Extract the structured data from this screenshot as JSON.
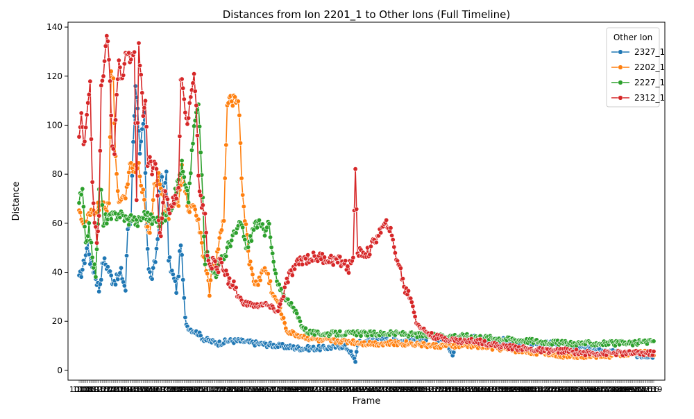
{
  "chart_data": {
    "type": "line",
    "title": "Distances from Ion 2201_1 to Other Ions (Full Timeline)",
    "xlabel": "Frame",
    "ylabel": "Distance",
    "ylim": [
      -4,
      142
    ],
    "y_ticks": [
      0,
      20,
      40,
      60,
      80,
      100,
      120,
      140
    ],
    "x_tick_labels_note": "",
    "grid": false,
    "legend": {
      "title": "Other Ion",
      "placement": "top-right"
    },
    "series": [
      {
        "name": "2327_1",
        "color": "#1f77b4",
        "anchors": [
          [
            0,
            37
          ],
          [
            4,
            43
          ],
          [
            8,
            52
          ],
          [
            10,
            45
          ],
          [
            14,
            40
          ],
          [
            18,
            33
          ],
          [
            22,
            45
          ],
          [
            26,
            42
          ],
          [
            30,
            37
          ],
          [
            34,
            37
          ],
          [
            38,
            40
          ],
          [
            42,
            33
          ],
          [
            44,
            58
          ],
          [
            47,
            62
          ],
          [
            49,
            95
          ],
          [
            51,
            115
          ],
          [
            53,
            105
          ],
          [
            55,
            87
          ],
          [
            57,
            98
          ],
          [
            59,
            103
          ],
          [
            61,
            60
          ],
          [
            63,
            42
          ],
          [
            65,
            37
          ],
          [
            67,
            40
          ],
          [
            69,
            45
          ],
          [
            71,
            54
          ],
          [
            74,
            80
          ],
          [
            76,
            75
          ],
          [
            79,
            80
          ],
          [
            81,
            46
          ],
          [
            84,
            40
          ],
          [
            86,
            37
          ],
          [
            88,
            33
          ],
          [
            90,
            40
          ],
          [
            92,
            53
          ],
          [
            94,
            37
          ],
          [
            96,
            21
          ],
          [
            98,
            18
          ],
          [
            100,
            17
          ],
          [
            104,
            16
          ],
          [
            108,
            15
          ],
          [
            112,
            13
          ],
          [
            118,
            12
          ],
          [
            126,
            11
          ],
          [
            135,
            12
          ],
          [
            145,
            12
          ],
          [
            160,
            11
          ],
          [
            180,
            10
          ],
          [
            200,
            9
          ],
          [
            220,
            9
          ],
          [
            240,
            10
          ],
          [
            245,
            8
          ],
          [
            248,
            5
          ],
          [
            250,
            4
          ],
          [
            252,
            11
          ],
          [
            270,
            13
          ],
          [
            290,
            12
          ],
          [
            310,
            13
          ],
          [
            330,
            13
          ],
          [
            338,
            7
          ],
          [
            345,
            14
          ],
          [
            370,
            13
          ],
          [
            390,
            12
          ],
          [
            410,
            11
          ],
          [
            430,
            11
          ],
          [
            450,
            10
          ],
          [
            470,
            8
          ],
          [
            490,
            7
          ],
          [
            510,
            6
          ],
          [
            520,
            6
          ]
        ]
      },
      {
        "name": "2202_1",
        "color": "#ff7f0e",
        "anchors": [
          [
            0,
            67
          ],
          [
            4,
            58
          ],
          [
            8,
            62
          ],
          [
            12,
            64
          ],
          [
            16,
            66
          ],
          [
            20,
            68
          ],
          [
            24,
            65
          ],
          [
            27,
            70
          ],
          [
            29,
            122
          ],
          [
            31,
            117
          ],
          [
            33,
            88
          ],
          [
            35,
            72
          ],
          [
            38,
            68
          ],
          [
            42,
            70
          ],
          [
            45,
            82
          ],
          [
            48,
            83
          ],
          [
            51,
            81
          ],
          [
            54,
            83
          ],
          [
            58,
            72
          ],
          [
            61,
            60
          ],
          [
            64,
            56
          ],
          [
            68,
            75
          ],
          [
            72,
            80
          ],
          [
            76,
            72
          ],
          [
            80,
            62
          ],
          [
            84,
            66
          ],
          [
            87,
            70
          ],
          [
            90,
            68
          ],
          [
            93,
            82
          ],
          [
            96,
            72
          ],
          [
            100,
            65
          ],
          [
            104,
            69
          ],
          [
            108,
            60
          ],
          [
            112,
            48
          ],
          [
            116,
            40
          ],
          [
            118,
            30
          ],
          [
            120,
            40
          ],
          [
            124,
            45
          ],
          [
            128,
            55
          ],
          [
            131,
            62
          ],
          [
            134,
            108
          ],
          [
            137,
            110
          ],
          [
            140,
            110
          ],
          [
            143,
            112
          ],
          [
            145,
            105
          ],
          [
            147,
            80
          ],
          [
            149,
            65
          ],
          [
            151,
            60
          ],
          [
            154,
            45
          ],
          [
            157,
            38
          ],
          [
            160,
            35
          ],
          [
            164,
            38
          ],
          [
            168,
            42
          ],
          [
            172,
            37
          ],
          [
            176,
            30
          ],
          [
            180,
            28
          ],
          [
            184,
            22
          ],
          [
            188,
            16
          ],
          [
            194,
            15
          ],
          [
            200,
            14
          ],
          [
            210,
            13
          ],
          [
            220,
            12
          ],
          [
            240,
            12
          ],
          [
            260,
            11
          ],
          [
            280,
            11
          ],
          [
            300,
            11
          ],
          [
            320,
            10
          ],
          [
            340,
            10
          ],
          [
            360,
            10
          ],
          [
            380,
            9
          ],
          [
            400,
            8
          ],
          [
            420,
            7
          ],
          [
            440,
            6
          ],
          [
            460,
            6
          ],
          [
            480,
            6
          ],
          [
            500,
            7
          ],
          [
            520,
            7
          ]
        ]
      },
      {
        "name": "2227_1",
        "color": "#2ca02c",
        "anchors": [
          [
            0,
            69
          ],
          [
            3,
            73
          ],
          [
            6,
            50
          ],
          [
            9,
            60
          ],
          [
            12,
            45
          ],
          [
            15,
            40
          ],
          [
            18,
            72
          ],
          [
            20,
            75
          ],
          [
            22,
            58
          ],
          [
            24,
            62
          ],
          [
            28,
            62
          ],
          [
            32,
            63
          ],
          [
            36,
            64
          ],
          [
            40,
            63
          ],
          [
            44,
            61
          ],
          [
            48,
            63
          ],
          [
            52,
            60
          ],
          [
            56,
            62
          ],
          [
            60,
            64
          ],
          [
            64,
            62
          ],
          [
            68,
            61
          ],
          [
            72,
            60
          ],
          [
            76,
            62
          ],
          [
            80,
            64
          ],
          [
            84,
            68
          ],
          [
            87,
            72
          ],
          [
            90,
            78
          ],
          [
            93,
            84
          ],
          [
            96,
            75
          ],
          [
            99,
            70
          ],
          [
            102,
            88
          ],
          [
            105,
            103
          ],
          [
            108,
            108
          ],
          [
            111,
            80
          ],
          [
            114,
            45
          ],
          [
            117,
            48
          ],
          [
            120,
            40
          ],
          [
            124,
            40
          ],
          [
            128,
            44
          ],
          [
            132,
            47
          ],
          [
            136,
            52
          ],
          [
            140,
            55
          ],
          [
            144,
            58
          ],
          [
            147,
            60
          ],
          [
            150,
            52
          ],
          [
            153,
            50
          ],
          [
            156,
            55
          ],
          [
            159,
            60
          ],
          [
            162,
            60
          ],
          [
            165,
            58
          ],
          [
            168,
            57
          ],
          [
            171,
            62
          ],
          [
            174,
            50
          ],
          [
            178,
            38
          ],
          [
            182,
            32
          ],
          [
            186,
            30
          ],
          [
            190,
            28
          ],
          [
            194,
            25
          ],
          [
            198,
            22
          ],
          [
            202,
            18
          ],
          [
            206,
            16
          ],
          [
            215,
            15
          ],
          [
            235,
            15
          ],
          [
            260,
            15
          ],
          [
            290,
            15
          ],
          [
            320,
            14
          ],
          [
            350,
            14
          ],
          [
            380,
            13
          ],
          [
            410,
            12
          ],
          [
            440,
            11
          ],
          [
            470,
            11
          ],
          [
            500,
            11
          ],
          [
            520,
            12
          ]
        ]
      },
      {
        "name": "2312_1",
        "color": "#d62728",
        "anchors": [
          [
            0,
            95
          ],
          [
            2,
            104
          ],
          [
            4,
            91
          ],
          [
            6,
            100
          ],
          [
            8,
            110
          ],
          [
            10,
            118
          ],
          [
            12,
            75
          ],
          [
            14,
            60
          ],
          [
            16,
            53
          ],
          [
            18,
            62
          ],
          [
            20,
            115
          ],
          [
            22,
            120
          ],
          [
            24,
            134
          ],
          [
            26,
            135
          ],
          [
            28,
            118
          ],
          [
            30,
            92
          ],
          [
            32,
            88
          ],
          [
            34,
            112
          ],
          [
            36,
            125
          ],
          [
            38,
            118
          ],
          [
            40,
            122
          ],
          [
            42,
            128
          ],
          [
            44,
            130
          ],
          [
            46,
            126
          ],
          [
            48,
            128
          ],
          [
            50,
            130
          ],
          [
            52,
            68
          ],
          [
            54,
            132
          ],
          [
            56,
            120
          ],
          [
            58,
            103
          ],
          [
            60,
            110
          ],
          [
            62,
            85
          ],
          [
            64,
            88
          ],
          [
            66,
            82
          ],
          [
            68,
            86
          ],
          [
            70,
            80
          ],
          [
            72,
            60
          ],
          [
            74,
            55
          ],
          [
            76,
            70
          ],
          [
            78,
            75
          ],
          [
            80,
            68
          ],
          [
            82,
            66
          ],
          [
            84,
            68
          ],
          [
            86,
            70
          ],
          [
            88,
            72
          ],
          [
            90,
            74
          ],
          [
            92,
            120
          ],
          [
            94,
            115
          ],
          [
            96,
            105
          ],
          [
            98,
            100
          ],
          [
            100,
            108
          ],
          [
            102,
            115
          ],
          [
            104,
            120
          ],
          [
            106,
            110
          ],
          [
            108,
            80
          ],
          [
            110,
            70
          ],
          [
            112,
            66
          ],
          [
            114,
            62
          ],
          [
            116,
            48
          ],
          [
            118,
            44
          ],
          [
            120,
            42
          ],
          [
            122,
            46
          ],
          [
            124,
            40
          ],
          [
            126,
            42
          ],
          [
            128,
            46
          ],
          [
            132,
            40
          ],
          [
            136,
            36
          ],
          [
            140,
            35
          ],
          [
            144,
            30
          ],
          [
            148,
            28
          ],
          [
            152,
            27
          ],
          [
            156,
            27
          ],
          [
            160,
            26
          ],
          [
            164,
            27
          ],
          [
            168,
            27
          ],
          [
            172,
            26
          ],
          [
            176,
            25
          ],
          [
            180,
            24
          ],
          [
            184,
            30
          ],
          [
            188,
            36
          ],
          [
            192,
            40
          ],
          [
            196,
            42
          ],
          [
            200,
            45
          ],
          [
            210,
            46
          ],
          [
            220,
            46
          ],
          [
            230,
            45
          ],
          [
            240,
            44
          ],
          [
            244,
            41
          ],
          [
            248,
            48
          ],
          [
            250,
            80
          ],
          [
            252,
            48
          ],
          [
            256,
            48
          ],
          [
            262,
            48
          ],
          [
            270,
            55
          ],
          [
            275,
            58
          ],
          [
            280,
            60
          ],
          [
            285,
            50
          ],
          [
            290,
            42
          ],
          [
            295,
            33
          ],
          [
            300,
            30
          ],
          [
            305,
            20
          ],
          [
            310,
            17
          ],
          [
            320,
            14
          ],
          [
            330,
            13
          ],
          [
            345,
            12
          ],
          [
            360,
            12
          ],
          [
            380,
            10
          ],
          [
            400,
            9
          ],
          [
            420,
            8
          ],
          [
            440,
            8
          ],
          [
            460,
            7
          ],
          [
            480,
            7
          ],
          [
            500,
            7
          ],
          [
            520,
            7
          ]
        ]
      }
    ]
  }
}
